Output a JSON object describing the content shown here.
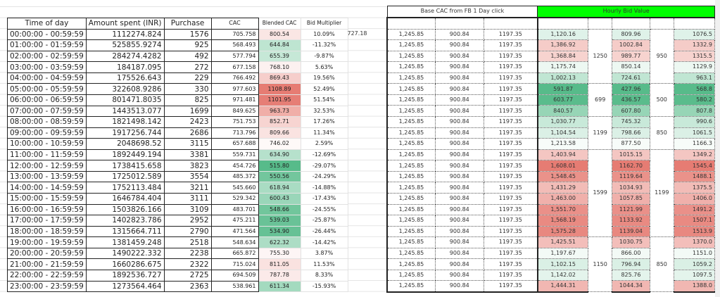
{
  "left": {
    "headers": [
      "Time of day",
      "Amount spent (INR)",
      "Purchase",
      "CAC",
      "Blended CAC",
      "Bid Multiplier"
    ],
    "rows": [
      {
        "time": "00:00:00 - 00:59:59",
        "amount": "1112274.824",
        "purchase": "1576",
        "cac": "705.758",
        "blended": "800.54",
        "mult": "10.09%"
      },
      {
        "time": "01:00:00 - 01:59:59",
        "amount": "525855.9274",
        "purchase": "925",
        "cac": "568.493",
        "blended": "644.84",
        "mult": "-11.32%"
      },
      {
        "time": "02:00:00 - 02:59:59",
        "amount": "284274.4282",
        "purchase": "492",
        "cac": "577.794",
        "blended": "655.39",
        "mult": "-9.87%"
      },
      {
        "time": "03:00:00 - 03:59:59",
        "amount": "184187.095",
        "purchase": "272",
        "cac": "677.158",
        "blended": "768.10",
        "mult": "5.63%"
      },
      {
        "time": "04:00:00 - 04:59:59",
        "amount": "175526.643",
        "purchase": "229",
        "cac": "766.492",
        "blended": "869.43",
        "mult": "19.56%"
      },
      {
        "time": "05:00:00 - 05:59:59",
        "amount": "322608.9286",
        "purchase": "330",
        "cac": "977.603",
        "blended": "1108.89",
        "mult": "52.49%"
      },
      {
        "time": "06:00:00 - 06:59:59",
        "amount": "801471.8035",
        "purchase": "825",
        "cac": "971.481",
        "blended": "1101.95",
        "mult": "51.54%"
      },
      {
        "time": "07:00:00 - 07:59:59",
        "amount": "1443513.077",
        "purchase": "1699",
        "cac": "849.625",
        "blended": "963.73",
        "mult": "32.53%"
      },
      {
        "time": "08:00:00 - 08:59:59",
        "amount": "1821498.142",
        "purchase": "2423",
        "cac": "751.753",
        "blended": "852.71",
        "mult": "17.26%"
      },
      {
        "time": "09:00:00 - 09:59:59",
        "amount": "1917256.744",
        "purchase": "2686",
        "cac": "713.796",
        "blended": "809.66",
        "mult": "11.34%"
      },
      {
        "time": "10:00:00 - 10:59:59",
        "amount": "2048698.52",
        "purchase": "3115",
        "cac": "657.688",
        "blended": "746.02",
        "mult": "2.59%"
      },
      {
        "time": "11:00:00 - 11:59:59",
        "amount": "1892449.194",
        "purchase": "3381",
        "cac": "559.731",
        "blended": "634.90",
        "mult": "-12.69%"
      },
      {
        "time": "12:00:00 - 12:59:59",
        "amount": "1738415.658",
        "purchase": "3823",
        "cac": "454.726",
        "blended": "515.80",
        "mult": "-29.07%"
      },
      {
        "time": "13:00:00 - 13:59:59",
        "amount": "1725012.589",
        "purchase": "3554",
        "cac": "485.372",
        "blended": "550.56",
        "mult": "-24.29%"
      },
      {
        "time": "14:00:00 - 14:59:59",
        "amount": "1752113.484",
        "purchase": "3211",
        "cac": "545.660",
        "blended": "618.94",
        "mult": "-14.88%"
      },
      {
        "time": "15:00:00 - 15:59:59",
        "amount": "1646784.404",
        "purchase": "3111",
        "cac": "529.342",
        "blended": "600.43",
        "mult": "-17.43%"
      },
      {
        "time": "16:00:00 - 16:59:59",
        "amount": "1503826.166",
        "purchase": "3109",
        "cac": "483.701",
        "blended": "548.66",
        "mult": "-24.55%"
      },
      {
        "time": "17:00:00 - 17:59:59",
        "amount": "1402823.786",
        "purchase": "2952",
        "cac": "475.211",
        "blended": "539.03",
        "mult": "-25.87%"
      },
      {
        "time": "18:00:00 - 18:59:59",
        "amount": "1315664.711",
        "purchase": "2790",
        "cac": "471.564",
        "blended": "534.90",
        "mult": "-26.44%"
      },
      {
        "time": "19:00:00 - 19:59:59",
        "amount": "1381459.248",
        "purchase": "2518",
        "cac": "548.634",
        "blended": "622.32",
        "mult": "-14.42%"
      },
      {
        "time": "20:00:00 - 20:59:59",
        "amount": "1490222.332",
        "purchase": "2238",
        "cac": "665.872",
        "blended": "755.30",
        "mult": "3.87%"
      },
      {
        "time": "21:00:00 - 21:59:59",
        "amount": "1660286.675",
        "purchase": "2322",
        "cac": "715.024",
        "blended": "811.05",
        "mult": "11.53%"
      },
      {
        "time": "22:00:00 - 22:59:59",
        "amount": "1892536.727",
        "purchase": "2725",
        "cac": "694.509",
        "blended": "787.78",
        "mult": "8.33%"
      },
      {
        "time": "23:00:00 - 23:59:59",
        "amount": "1273564.464",
        "purchase": "2363",
        "cac": "538.961",
        "blended": "611.34",
        "mult": "-15.93%"
      }
    ]
  },
  "extra_value": "727.18",
  "right": {
    "base_header": "Base CAC from FB 1 Day click",
    "hourly_header": "Hourly Bid Value",
    "base": [
      "1,245.85",
      "900.84",
      "1197.35"
    ],
    "hourly": [
      [
        "1,120.16",
        "809.96",
        "1076.5"
      ],
      [
        "1,386.92",
        "1002.84",
        "1332.9"
      ],
      [
        "1,368.84",
        "989.77",
        "1315.5"
      ],
      [
        "1,175.74",
        "850.14",
        "1129.9"
      ],
      [
        "1,002.13",
        "724.61",
        "963.1"
      ],
      [
        "591.87",
        "427.96",
        "568.8"
      ],
      [
        "603.77",
        "436.57",
        "580.2"
      ],
      [
        "840.57",
        "607.80",
        "807.8"
      ],
      [
        "1,030.77",
        "745.32",
        "990.6"
      ],
      [
        "1,104.54",
        "798.66",
        "1061.5"
      ],
      [
        "1,213.58",
        "877.50",
        "1166.3"
      ],
      [
        "1,403.94",
        "1015.15",
        "1349.2"
      ],
      [
        "1,608.01",
        "1162.70",
        "1545.4"
      ],
      [
        "1,548.45",
        "1119.64",
        "1488.1"
      ],
      [
        "1,431.29",
        "1034.93",
        "1375.5"
      ],
      [
        "1,463.00",
        "1057.85",
        "1406.0"
      ],
      [
        "1,551.70",
        "1121.99",
        "1491.2"
      ],
      [
        "1,568.19",
        "1133.92",
        "1507.1"
      ],
      [
        "1,575.28",
        "1139.04",
        "1513.9"
      ],
      [
        "1,425.51",
        "1030.75",
        "1370.0"
      ],
      [
        "1,197.67",
        "866.00",
        "1151.0"
      ],
      [
        "1,102.15",
        "796.94",
        "1059.2"
      ],
      [
        "1,142.02",
        "825.76",
        "1097.5"
      ],
      [
        "1,444.31",
        "1044.34",
        "1388.0"
      ]
    ],
    "merged_a": [
      {
        "value": "1250",
        "rows": 5
      },
      {
        "value": "699",
        "rows": 3
      },
      {
        "value": "1199",
        "rows": 3
      },
      {
        "value": "1599",
        "rows": 8
      },
      {
        "value": "1150",
        "rows": 5
      }
    ],
    "merged_b": [
      {
        "value": "950",
        "rows": 5
      },
      {
        "value": "500",
        "rows": 3
      },
      {
        "value": "850",
        "rows": 3
      },
      {
        "value": "1199",
        "rows": 8
      },
      {
        "value": "850",
        "rows": 5
      }
    ]
  },
  "colors": {
    "hourly_header": "#00ff00",
    "scale_low": "#57bb8a",
    "scale_mid": "#ffffff",
    "scale_high": "#e67c73"
  }
}
